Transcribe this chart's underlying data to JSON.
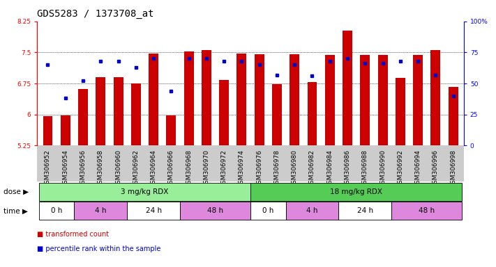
{
  "title": "GDS5283 / 1373708_at",
  "samples": [
    "GSM306952",
    "GSM306954",
    "GSM306956",
    "GSM306958",
    "GSM306960",
    "GSM306962",
    "GSM306964",
    "GSM306966",
    "GSM306968",
    "GSM306970",
    "GSM306972",
    "GSM306974",
    "GSM306976",
    "GSM306978",
    "GSM306980",
    "GSM306982",
    "GSM306984",
    "GSM306986",
    "GSM306988",
    "GSM306990",
    "GSM306992",
    "GSM306994",
    "GSM306996",
    "GSM306998"
  ],
  "transformed_count": [
    5.96,
    5.97,
    6.62,
    6.9,
    6.9,
    6.75,
    7.48,
    5.97,
    7.52,
    7.56,
    6.83,
    7.48,
    7.46,
    6.74,
    7.45,
    6.78,
    7.44,
    8.02,
    7.44,
    7.44,
    6.88,
    7.44,
    7.56,
    6.66
  ],
  "percentile_rank": [
    65,
    38,
    52,
    68,
    68,
    63,
    70,
    44,
    70,
    70,
    68,
    68,
    65,
    57,
    65,
    56,
    68,
    70,
    66,
    66,
    68,
    68,
    57,
    40
  ],
  "y_min": 5.25,
  "y_max": 8.25,
  "y_ticks": [
    5.25,
    6.0,
    6.75,
    7.5,
    8.25
  ],
  "y_tick_labels": [
    "5.25",
    "6",
    "6.75",
    "7.5",
    "8.25"
  ],
  "right_y_ticks": [
    0,
    25,
    50,
    75,
    100
  ],
  "right_y_tick_labels": [
    "0",
    "25",
    "50",
    "75",
    "100%"
  ],
  "bar_color": "#cc0000",
  "dot_color": "#0000cc",
  "xtick_bg_color": "#cccccc",
  "dose_groups": [
    {
      "label": "3 mg/kg RDX",
      "start": 0,
      "end": 11,
      "color": "#99ee99"
    },
    {
      "label": "18 mg/kg RDX",
      "start": 12,
      "end": 23,
      "color": "#55cc55"
    }
  ],
  "time_groups": [
    {
      "label": "0 h",
      "start": 0,
      "end": 1,
      "color": "#ffffff"
    },
    {
      "label": "4 h",
      "start": 2,
      "end": 4,
      "color": "#dd88dd"
    },
    {
      "label": "24 h",
      "start": 5,
      "end": 7,
      "color": "#ffffff"
    },
    {
      "label": "48 h",
      "start": 8,
      "end": 11,
      "color": "#dd88dd"
    },
    {
      "label": "0 h",
      "start": 12,
      "end": 13,
      "color": "#ffffff"
    },
    {
      "label": "4 h",
      "start": 14,
      "end": 16,
      "color": "#dd88dd"
    },
    {
      "label": "24 h",
      "start": 17,
      "end": 19,
      "color": "#ffffff"
    },
    {
      "label": "48 h",
      "start": 20,
      "end": 23,
      "color": "#dd88dd"
    }
  ],
  "legend_items": [
    {
      "label": "transformed count",
      "color": "#cc0000"
    },
    {
      "label": "percentile rank within the sample",
      "color": "#0000cc"
    }
  ],
  "title_fontsize": 10,
  "tick_fontsize": 6.5,
  "label_fontsize": 7.5,
  "bar_width": 0.55
}
